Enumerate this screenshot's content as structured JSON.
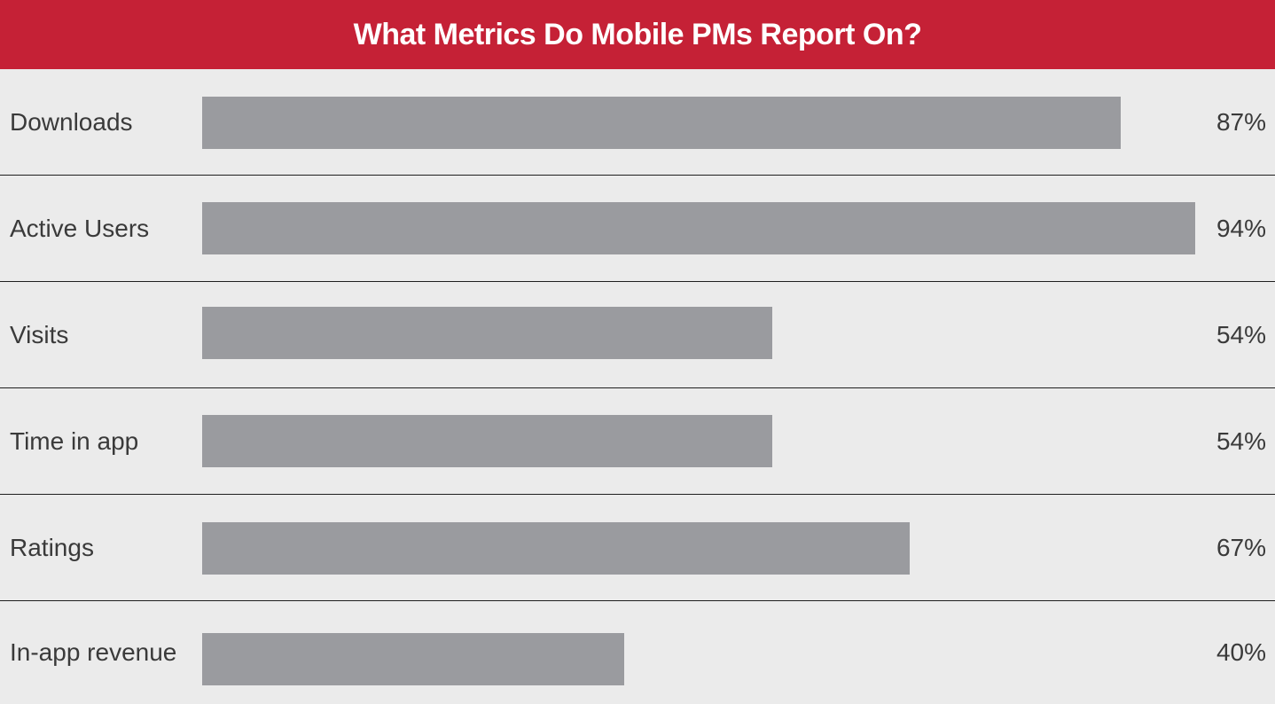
{
  "colors": {
    "header_bg": "#c52136",
    "bar": "#9a9b9f",
    "background": "#ebebeb"
  },
  "chart_data": {
    "type": "bar",
    "orientation": "horizontal",
    "title": "What Metrics Do Mobile PMs Report On?",
    "categories": [
      "Downloads",
      "Active Users",
      "Visits",
      "Time in app",
      "Ratings",
      "In-app revenue"
    ],
    "values": [
      87,
      94,
      54,
      54,
      67,
      40
    ],
    "value_labels": [
      "87%",
      "94%",
      "54%",
      "54%",
      "67%",
      "40%"
    ],
    "xlim": [
      0,
      100
    ],
    "grid": false,
    "legend": "none"
  }
}
